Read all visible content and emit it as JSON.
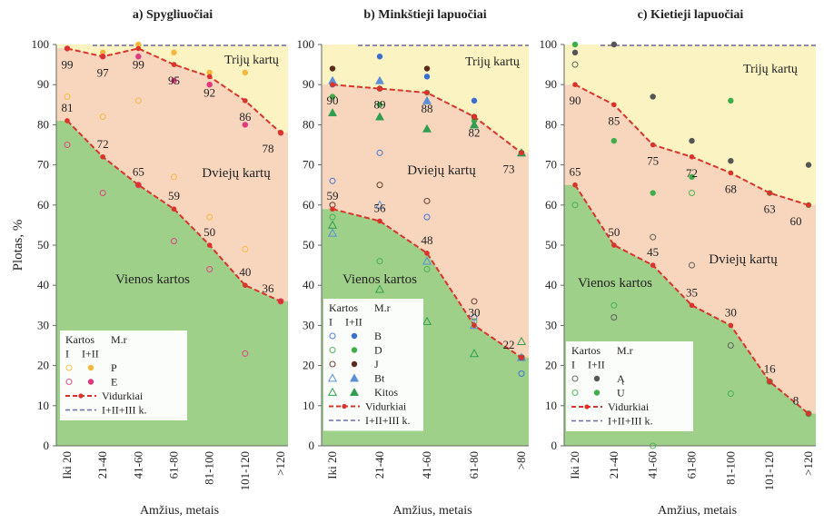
{
  "ylabel": "Plotas, %",
  "colors": {
    "one": "#9fd08a",
    "two": "#f8d6be",
    "three": "#fbf3c1",
    "avg": "#d9342b",
    "total": "#6b6ba8"
  },
  "zone_labels": {
    "three": "Trijų kartų",
    "two": "Dviejų kartų",
    "one": "Vienos kartos"
  },
  "chart_data": [
    {
      "type": "area",
      "title": "a) Spygliuočiai",
      "xlabel": "Amžius, metais",
      "categories": [
        "Iki 20",
        "21-40",
        "41-60",
        "61-80",
        "81-100",
        "101-120",
        ">120"
      ],
      "ylim": [
        0,
        100
      ],
      "yticks": [
        0,
        10,
        20,
        30,
        40,
        50,
        60,
        70,
        80,
        90,
        100
      ],
      "series": [
        {
          "name": "Vidurkiai",
          "role": "two_gen_avg",
          "values": [
            99,
            97,
            99,
            95,
            92,
            86,
            78
          ]
        },
        {
          "name": "Vidurkiai",
          "role": "one_gen_avg",
          "values": [
            81,
            72,
            65,
            59,
            50,
            40,
            36
          ]
        },
        {
          "name": "I+II+III k.",
          "role": "total",
          "values": [
            100,
            100,
            100,
            100,
            100,
            100,
            100
          ]
        }
      ],
      "species": [
        {
          "name": "P",
          "color": "#f6b73c",
          "I": [
            87,
            82,
            86,
            67,
            57,
            49,
            36
          ],
          "I_II": [
            99,
            98,
            100,
            98,
            93,
            93,
            78
          ]
        },
        {
          "name": "E",
          "color": "#e2387f",
          "I": [
            75,
            63,
            65,
            51,
            44,
            23,
            36
          ],
          "I_II": [
            99,
            97,
            97,
            91,
            90,
            80,
            78
          ]
        }
      ],
      "legend": {
        "header": [
          "Kartos",
          "M.r"
        ],
        "subheader": [
          "I",
          "I+II"
        ],
        "items": [
          "P",
          "E"
        ],
        "lines": [
          "Vidurkiai",
          "I+II+III k."
        ]
      },
      "zone_labels": [
        "Trijų kartų",
        "Dviejų kartų",
        "Vienos kartos"
      ]
    },
    {
      "type": "area",
      "title": "b) Minkštieji lapuočiai",
      "xlabel": "Amžius, metais",
      "categories": [
        "Iki 20",
        "21-40",
        "41-60",
        "61-80",
        ">80"
      ],
      "ylim": [
        0,
        100
      ],
      "yticks": [
        0,
        10,
        20,
        30,
        40,
        50,
        60,
        70,
        80,
        90,
        100
      ],
      "series": [
        {
          "name": "Vidurkiai",
          "role": "two_gen_avg",
          "values": [
            90,
            89,
            88,
            82,
            73
          ]
        },
        {
          "name": "Vidurkiai",
          "role": "one_gen_avg",
          "values": [
            59,
            56,
            48,
            30,
            22
          ]
        },
        {
          "name": "I+II+III k.",
          "role": "total",
          "values": [
            100,
            100,
            100,
            100,
            100
          ]
        }
      ],
      "species": [
        {
          "name": "B",
          "color": "#3a6fd1",
          "I": [
            66,
            73,
            57,
            32,
            18
          ],
          "I_II": [
            90,
            97,
            92,
            86,
            73
          ]
        },
        {
          "name": "D",
          "color": "#3fae4a",
          "I": [
            57,
            46,
            44,
            31,
            22
          ],
          "I_II": [
            87,
            85,
            88,
            81,
            73
          ]
        },
        {
          "name": "J",
          "color": "#5b2a1c",
          "I": [
            60,
            65,
            61,
            36,
            22
          ],
          "I_II": [
            94,
            89,
            94,
            82,
            73
          ]
        },
        {
          "name": "Bt",
          "color": "#5b8fd6",
          "I": [
            53,
            60,
            46,
            30,
            22
          ],
          "I_II": [
            91,
            91,
            86,
            80,
            73
          ]
        },
        {
          "name": "Kitos",
          "color": "#2f9e4f",
          "I": [
            55,
            39,
            31,
            23,
            26
          ],
          "I_II": [
            83,
            82,
            79,
            80,
            73
          ]
        }
      ],
      "legend": {
        "header": [
          "Kartos",
          "M.r"
        ],
        "subheader": [
          "I",
          "I+II"
        ],
        "items": [
          "B",
          "D",
          "J",
          "Bt",
          "Kitos"
        ],
        "lines": [
          "Vidurkiai",
          "I+II+III k."
        ]
      },
      "zone_labels": [
        "Trijų kartų",
        "Dviejų kartų",
        "Vienos kartos"
      ]
    },
    {
      "type": "area",
      "title": "c) Kietieji lapuočiai",
      "xlabel": "Amžius, metais",
      "categories": [
        "Iki 20",
        "21-40",
        "41-60",
        "61-80",
        "81-100",
        "101-120",
        ">120"
      ],
      "ylim": [
        0,
        100
      ],
      "yticks": [
        0,
        10,
        20,
        30,
        40,
        50,
        60,
        70,
        80,
        90,
        100
      ],
      "series": [
        {
          "name": "Vidurkiai",
          "role": "two_gen_avg",
          "values": [
            90,
            85,
            75,
            72,
            68,
            63,
            60
          ]
        },
        {
          "name": "Vidurkiai",
          "role": "one_gen_avg",
          "values": [
            65,
            50,
            45,
            35,
            30,
            16,
            8
          ]
        },
        {
          "name": "I+II+III k.",
          "role": "total",
          "values": [
            100,
            100,
            100,
            100,
            100,
            100,
            100
          ]
        }
      ],
      "species": [
        {
          "name": "Ą",
          "color": "#555555",
          "I": [
            95,
            32,
            52,
            45,
            25,
            16,
            8
          ],
          "I_II": [
            98,
            100,
            87,
            76,
            71,
            63,
            70
          ]
        },
        {
          "name": "U",
          "color": "#3fae4a",
          "I": [
            60,
            35,
            0,
            63,
            13,
            16,
            8
          ],
          "I_II": [
            100,
            76,
            63,
            67,
            86,
            63,
            60
          ]
        }
      ],
      "legend": {
        "header": [
          "Kartos",
          "M.r"
        ],
        "subheader": [
          "I",
          "I+II"
        ],
        "items": [
          "Ą",
          "U"
        ],
        "lines": [
          "Vidurkiai",
          "I+II+III k."
        ]
      },
      "zone_labels": [
        "Trijų kartų",
        "Dviejų kartų",
        "Vienos kartos"
      ]
    }
  ]
}
